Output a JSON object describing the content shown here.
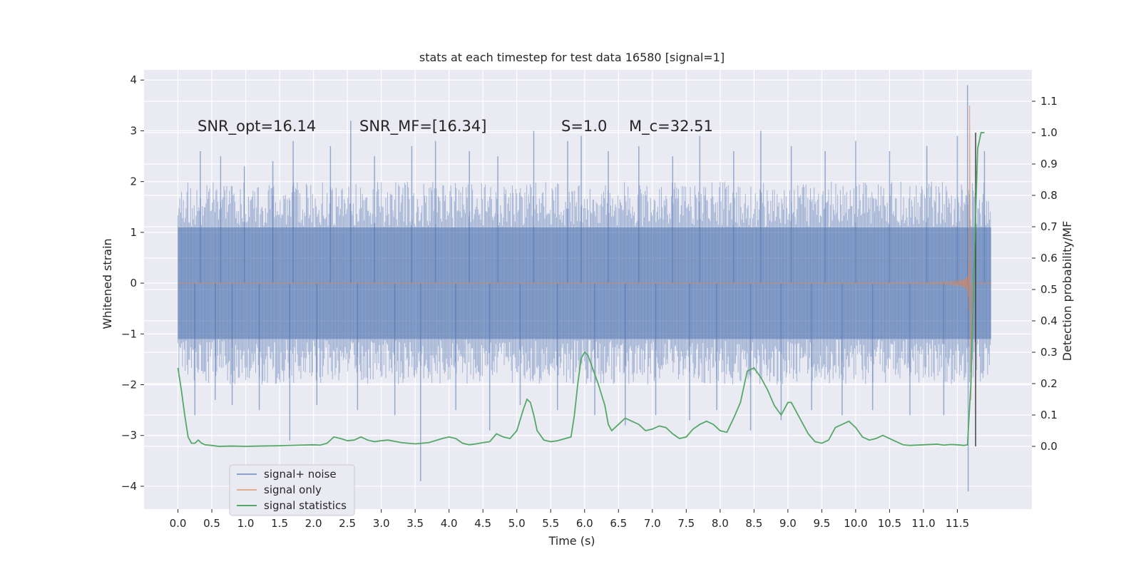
{
  "chart_data": {
    "type": "line",
    "title": "stats at each timestep for test data 16580 [signal=1]",
    "xlabel": "Time (s)",
    "ylabel": "Whitened strain",
    "y2label": "Detection probability/MF",
    "xlim": [
      -0.5,
      12.6
    ],
    "ylim": [
      -4.45,
      4.2
    ],
    "y2lim": [
      -0.2,
      1.2
    ],
    "xticks": [
      0.0,
      0.5,
      1.0,
      1.5,
      2.0,
      2.5,
      3.0,
      3.5,
      4.0,
      4.5,
      5.0,
      5.5,
      6.0,
      6.5,
      7.0,
      7.5,
      8.0,
      8.5,
      9.0,
      9.5,
      10.0,
      10.5,
      11.0,
      11.5
    ],
    "xtick_labels": [
      "0.0",
      "0.5",
      "1.0",
      "1.5",
      "2.0",
      "2.5",
      "3.0",
      "3.5",
      "4.0",
      "4.5",
      "5.0",
      "5.5",
      "6.0",
      "6.5",
      "7.0",
      "7.5",
      "8.0",
      "8.5",
      "9.0",
      "9.5",
      "10.0",
      "10.5",
      "11.0",
      "11.5"
    ],
    "yticks": [
      4,
      3,
      2,
      1,
      0,
      -1,
      -2,
      -3,
      -4
    ],
    "ytick_labels": [
      "4",
      "3",
      "2",
      "1",
      "0",
      "−1",
      "−2",
      "−3",
      "−4"
    ],
    "y2ticks": [
      1.1,
      1.0,
      0.9,
      0.8,
      0.7,
      0.6,
      0.5,
      0.4,
      0.3,
      0.2,
      0.1,
      0.0
    ],
    "y2tick_labels": [
      "1.1",
      "1.0",
      "0.9",
      "0.8",
      "0.7",
      "0.6",
      "0.5",
      "0.4",
      "0.3",
      "0.2",
      "0.1",
      "0.0"
    ],
    "grid": true,
    "legend_position": "lower-left",
    "annotations": [
      {
        "text": "SNR_opt=16.14",
        "x": 0.2,
        "y": 3.1
      },
      {
        "text": "SNR_MF=[16.34]",
        "x": 2.6,
        "y": 3.1
      },
      {
        "text": "S=1.0",
        "x": 5.6,
        "y": 3.1
      },
      {
        "text": "M_c=32.51",
        "x": 6.6,
        "y": 3.1
      }
    ],
    "series": [
      {
        "name": "signal+ noise",
        "axis": "left",
        "color": "#4c72b0",
        "note": "dense whitened noise; envelope approx mean ± 1.1, extreme excursions up to about +3.9 / −4.1",
        "band": {
          "x_start": 0.0,
          "x_end": 12.0,
          "core_low": -1.1,
          "core_high": 1.1
        },
        "spikes": [
          {
            "x": 0.25,
            "y": -2.6
          },
          {
            "x": 0.33,
            "y": 2.6
          },
          {
            "x": 0.55,
            "y": -2.3
          },
          {
            "x": 0.63,
            "y": 2.5
          },
          {
            "x": 0.8,
            "y": -2.4
          },
          {
            "x": 0.98,
            "y": 2.3
          },
          {
            "x": 1.2,
            "y": -2.5
          },
          {
            "x": 1.4,
            "y": 2.4
          },
          {
            "x": 1.65,
            "y": -3.1
          },
          {
            "x": 1.7,
            "y": 2.8
          },
          {
            "x": 2.05,
            "y": -2.4
          },
          {
            "x": 2.25,
            "y": 2.7
          },
          {
            "x": 2.55,
            "y": 3.2
          },
          {
            "x": 2.65,
            "y": -2.5
          },
          {
            "x": 2.9,
            "y": 2.5
          },
          {
            "x": 3.2,
            "y": -2.6
          },
          {
            "x": 3.45,
            "y": 2.7
          },
          {
            "x": 3.58,
            "y": -3.9
          },
          {
            "x": 3.8,
            "y": 2.8
          },
          {
            "x": 4.1,
            "y": -2.5
          },
          {
            "x": 4.3,
            "y": 2.6
          },
          {
            "x": 4.6,
            "y": -2.9
          },
          {
            "x": 4.72,
            "y": 2.5
          },
          {
            "x": 5.05,
            "y": -2.4
          },
          {
            "x": 5.25,
            "y": 3.0
          },
          {
            "x": 5.6,
            "y": -2.5
          },
          {
            "x": 5.75,
            "y": 2.8
          },
          {
            "x": 5.95,
            "y": 2.9
          },
          {
            "x": 6.15,
            "y": -2.6
          },
          {
            "x": 6.35,
            "y": 2.6
          },
          {
            "x": 6.6,
            "y": -2.8
          },
          {
            "x": 6.8,
            "y": 2.7
          },
          {
            "x": 7.05,
            "y": -2.6
          },
          {
            "x": 7.3,
            "y": 2.5
          },
          {
            "x": 7.55,
            "y": -2.7
          },
          {
            "x": 7.7,
            "y": 2.9
          },
          {
            "x": 7.95,
            "y": -2.5
          },
          {
            "x": 8.2,
            "y": 2.6
          },
          {
            "x": 8.45,
            "y": -2.9
          },
          {
            "x": 8.6,
            "y": 3.0
          },
          {
            "x": 8.9,
            "y": -2.7
          },
          {
            "x": 9.05,
            "y": 2.7
          },
          {
            "x": 9.35,
            "y": -2.5
          },
          {
            "x": 9.55,
            "y": 2.6
          },
          {
            "x": 9.8,
            "y": -2.6
          },
          {
            "x": 10.0,
            "y": 2.8
          },
          {
            "x": 10.25,
            "y": -2.5
          },
          {
            "x": 10.5,
            "y": 2.6
          },
          {
            "x": 10.8,
            "y": -2.6
          },
          {
            "x": 11.05,
            "y": 2.7
          },
          {
            "x": 11.3,
            "y": -2.6
          },
          {
            "x": 11.5,
            "y": 2.9
          },
          {
            "x": 11.65,
            "y": 3.9
          },
          {
            "x": 11.66,
            "y": -4.1
          },
          {
            "x": 11.9,
            "y": 2.6
          }
        ]
      },
      {
        "name": "signal only",
        "axis": "left",
        "color": "#dd8452",
        "note": "chirp: amplitude ~0 before 6 s, grows to about +3.5 / −2.3 at merger near 11.68 s, then drops to 0",
        "merger_time": 11.68,
        "peak_high": 3.5,
        "peak_low": -2.3
      },
      {
        "name": "signal statistics",
        "axis": "right",
        "color": "#55a868",
        "x": [
          0.0,
          0.05,
          0.1,
          0.15,
          0.2,
          0.25,
          0.3,
          0.35,
          0.4,
          0.5,
          0.6,
          0.8,
          1.0,
          1.2,
          1.5,
          1.8,
          2.0,
          2.1,
          2.2,
          2.3,
          2.4,
          2.5,
          2.6,
          2.7,
          2.8,
          2.9,
          3.0,
          3.1,
          3.3,
          3.5,
          3.7,
          3.9,
          4.0,
          4.1,
          4.2,
          4.3,
          4.4,
          4.5,
          4.6,
          4.7,
          4.8,
          4.9,
          5.0,
          5.1,
          5.15,
          5.2,
          5.25,
          5.3,
          5.4,
          5.5,
          5.6,
          5.8,
          5.85,
          5.9,
          5.95,
          6.0,
          6.05,
          6.1,
          6.2,
          6.3,
          6.35,
          6.4,
          6.5,
          6.6,
          6.7,
          6.8,
          6.9,
          7.0,
          7.1,
          7.2,
          7.3,
          7.4,
          7.5,
          7.6,
          7.7,
          7.8,
          7.9,
          8.0,
          8.1,
          8.2,
          8.3,
          8.4,
          8.5,
          8.6,
          8.7,
          8.8,
          8.9,
          9.0,
          9.05,
          9.1,
          9.2,
          9.3,
          9.4,
          9.5,
          9.6,
          9.7,
          9.8,
          9.9,
          10.0,
          10.1,
          10.2,
          10.3,
          10.4,
          10.5,
          10.6,
          10.7,
          10.8,
          11.0,
          11.2,
          11.3,
          11.4,
          11.5,
          11.6,
          11.65,
          11.7,
          11.75,
          11.8,
          11.85,
          11.9
        ],
        "values": [
          0.25,
          0.18,
          0.1,
          0.03,
          0.01,
          0.01,
          0.02,
          0.01,
          0.005,
          0.003,
          0.0,
          0.001,
          0.0,
          0.001,
          0.002,
          0.004,
          0.005,
          0.004,
          0.01,
          0.03,
          0.025,
          0.018,
          0.02,
          0.03,
          0.02,
          0.015,
          0.018,
          0.02,
          0.012,
          0.008,
          0.012,
          0.025,
          0.03,
          0.025,
          0.01,
          0.005,
          0.008,
          0.012,
          0.015,
          0.04,
          0.03,
          0.025,
          0.05,
          0.12,
          0.15,
          0.14,
          0.1,
          0.05,
          0.02,
          0.015,
          0.018,
          0.03,
          0.1,
          0.2,
          0.28,
          0.3,
          0.29,
          0.26,
          0.2,
          0.13,
          0.07,
          0.05,
          0.07,
          0.09,
          0.08,
          0.07,
          0.05,
          0.055,
          0.065,
          0.06,
          0.04,
          0.025,
          0.03,
          0.055,
          0.07,
          0.08,
          0.07,
          0.05,
          0.045,
          0.09,
          0.14,
          0.24,
          0.25,
          0.22,
          0.18,
          0.13,
          0.1,
          0.14,
          0.14,
          0.12,
          0.08,
          0.04,
          0.015,
          0.01,
          0.02,
          0.06,
          0.07,
          0.08,
          0.06,
          0.03,
          0.02,
          0.025,
          0.035,
          0.025,
          0.015,
          0.005,
          0.003,
          0.005,
          0.007,
          0.004,
          0.006,
          0.005,
          0.003,
          0.005,
          0.2,
          0.6,
          0.95,
          1.0,
          1.0
        ]
      }
    ]
  }
}
